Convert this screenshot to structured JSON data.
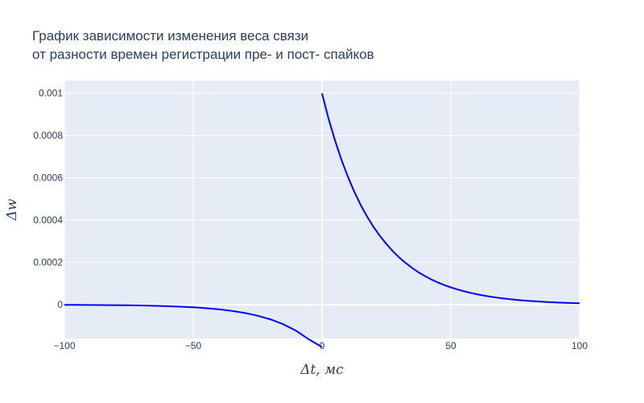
{
  "chart_data": {
    "type": "line",
    "title_lines": [
      "График зависимости изменения веса связи",
      "от разности времен регистрации пре- и пост- спайков"
    ],
    "xlabel": "Δt, мс",
    "ylabel": "Δw",
    "xlim": [
      -100,
      100
    ],
    "ylim": [
      -0.00016,
      0.00106
    ],
    "x_ticks": [
      -100,
      -50,
      0,
      50,
      100
    ],
    "x_tick_labels": [
      "−100",
      "−50",
      "0",
      "50",
      "100"
    ],
    "y_ticks": [
      0,
      0.0002,
      0.0004,
      0.0006,
      0.0008,
      0.001
    ],
    "y_tick_labels": [
      "0",
      "0.0002",
      "0.0004",
      "0.0006",
      "0.0008",
      "0.001"
    ],
    "grid": true,
    "legend": "none",
    "colors": {
      "plot_bg": "#e5ecf6",
      "grid": "#ffffff",
      "line": "#0000ff",
      "text": "#2a3f5f"
    },
    "series": [
      {
        "x": [
          -100,
          -95,
          -90,
          -85,
          -80,
          -75,
          -70,
          -65,
          -60,
          -55,
          -50,
          -45,
          -40,
          -35,
          -30,
          -25,
          -20,
          -15,
          -10,
          -5,
          0
        ],
        "y": [
          -7e-07,
          -9e-07,
          -1.2e-06,
          -1.6e-06,
          -2.2e-06,
          -2.9e-06,
          -3.9e-06,
          -5.2e-06,
          -6.9e-06,
          -9.2e-06,
          -1.23e-05,
          -1.64e-05,
          -2.19e-05,
          -2.92e-05,
          -3.9e-05,
          -5.2e-05,
          -6.94e-05,
          -9.26e-05,
          -0.0001235,
          -0.0001648,
          -0.0002
        ]
      },
      {
        "x": [
          0,
          2.5,
          5,
          7.5,
          10,
          12.5,
          15,
          17.5,
          20,
          22.5,
          25,
          27.5,
          30,
          32.5,
          35,
          37.5,
          40,
          42.5,
          45,
          47.5,
          50,
          52.5,
          55,
          57.5,
          60,
          62.5,
          65,
          67.5,
          70,
          72.5,
          75,
          77.5,
          80,
          82.5,
          85,
          87.5,
          90,
          92.5,
          95,
          97.5,
          100
        ],
        "y": [
          0.001,
          0.000882,
          0.000779,
          0.000687,
          0.000607,
          0.000535,
          0.000472,
          0.000417,
          0.000368,
          0.000325,
          0.000287,
          0.000253,
          0.000223,
          0.000197,
          0.000174,
          0.000153,
          0.000135,
          0.000119,
          0.000105,
          9.29e-05,
          8.21e-05,
          7.24e-05,
          6.39e-05,
          5.64e-05,
          4.98e-05,
          4.4e-05,
          3.88e-05,
          3.42e-05,
          3.02e-05,
          2.67e-05,
          2.35e-05,
          2.08e-05,
          1.83e-05,
          1.62e-05,
          1.43e-05,
          1.26e-05,
          1.11e-05,
          9.8e-06,
          8.7e-06,
          7.6e-06,
          6.7e-06
        ]
      }
    ]
  }
}
